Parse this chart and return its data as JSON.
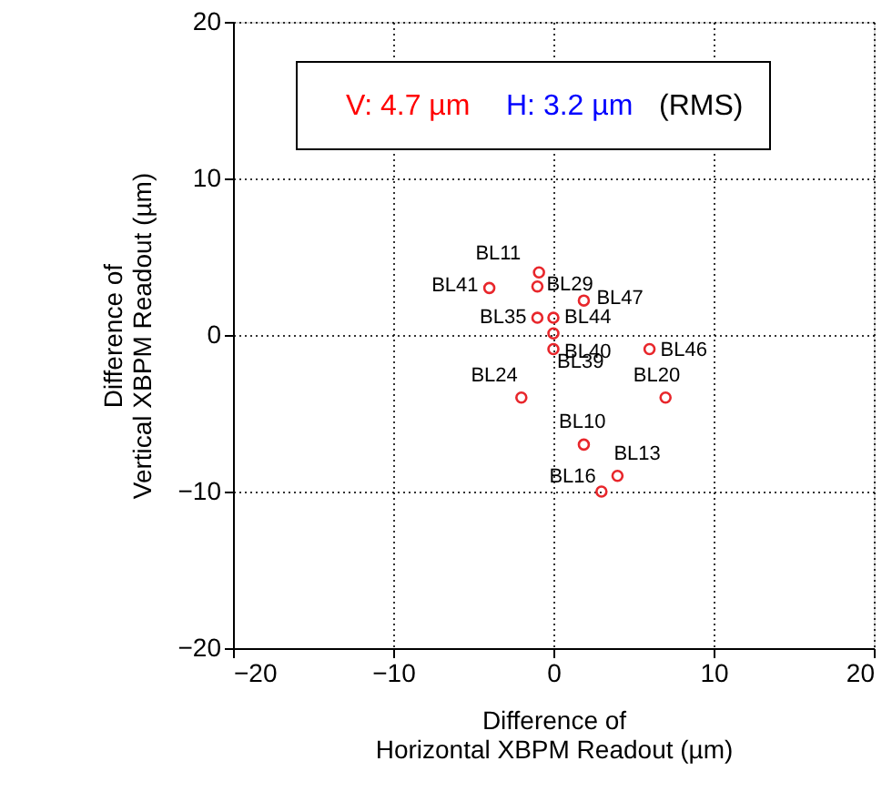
{
  "chart_data": {
    "type": "scatter",
    "xlabel": "Difference of\nHorizontal XBPM Readout (µm)",
    "ylabel": "Difference of\nVertical XBPM Readout (µm)",
    "x": [
      -0.9,
      -4,
      -1,
      1.9,
      -1,
      0,
      0,
      0,
      6,
      -2,
      7,
      1.9,
      4,
      3
    ],
    "series": [
      {
        "color": "#e8262b",
        "values": [
          4,
          3,
          3.1,
          2.2,
          1.1,
          1.1,
          0.1,
          -0.9,
          -0.9,
          -4,
          -4,
          -7,
          -9,
          -10
        ]
      }
    ],
    "marker": "circle",
    "xlim": [
      -20,
      20
    ],
    "xticks": [
      -20,
      -10,
      0,
      10,
      20
    ],
    "ylim": [
      -20,
      20
    ],
    "yticks": [
      -20,
      -10,
      0,
      10,
      20
    ],
    "grid": true,
    "annotations": [
      {
        "text": "BL11",
        "x": -0.9,
        "y": 4
      },
      {
        "text": "BL41",
        "x": -4,
        "y": 3
      },
      {
        "text": "BL29",
        "x": -1,
        "y": 3.1
      },
      {
        "text": "BL47",
        "x": 1.9,
        "y": 2.2
      },
      {
        "text": "BL35",
        "x": -1,
        "y": 1.1
      },
      {
        "text": "BL44",
        "x": 0,
        "y": 1.1
      },
      {
        "text": "BL40",
        "x": 0,
        "y": -0.9
      },
      {
        "text": "BL39",
        "x": 0,
        "y": 0.1
      },
      {
        "text": "BL46",
        "x": 6,
        "y": -0.9
      },
      {
        "text": "BL24",
        "x": -2,
        "y": -4
      },
      {
        "text": "BL20",
        "x": 7,
        "y": -4
      },
      {
        "text": "BL10",
        "x": 1.9,
        "y": -7
      },
      {
        "text": "BL13",
        "x": 4,
        "y": -9
      },
      {
        "text": "BL16",
        "x": 3,
        "y": -10
      },
      "V: 4.7 µm",
      "H: 3.2 µm",
      "(RMS)"
    ]
  }
}
